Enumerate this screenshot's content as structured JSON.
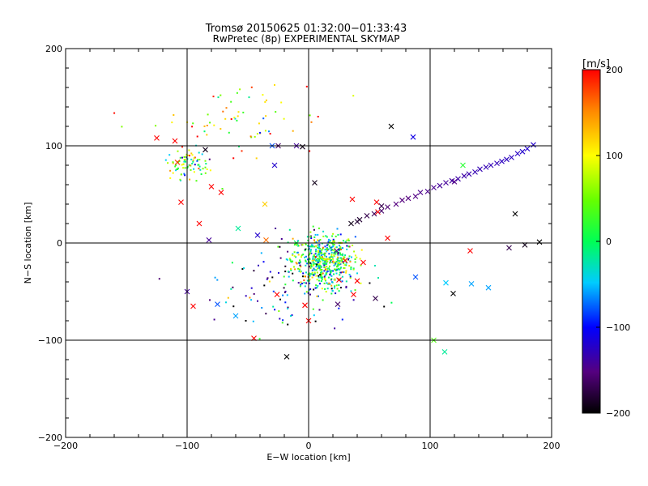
{
  "chart_data": {
    "type": "scatter",
    "title": "Tromsø 20150625 01:32:00−01:33:43",
    "subtitle": "RwPretec (8p) EXPERIMENTAL SKYMAP",
    "xlabel": "E−W location [km]",
    "ylabel": "N−S location [km]",
    "xlim": [
      -200,
      200
    ],
    "ylim": [
      -200,
      200
    ],
    "x_ticks": [
      -200,
      -100,
      0,
      100,
      200
    ],
    "y_ticks": [
      -200,
      -100,
      0,
      100,
      200
    ],
    "x_tick_labels": [
      "−200",
      "−100",
      "0",
      "100",
      "200"
    ],
    "y_tick_labels": [
      "−200",
      "−100",
      "0",
      "100",
      "200"
    ],
    "grid": true,
    "colorbar": {
      "label": "[m/s]",
      "range": [
        -200,
        200
      ],
      "ticks": [
        200,
        100,
        0,
        -100,
        -200
      ],
      "tick_labels": [
        "200",
        "100",
        "0",
        "−100",
        "−200"
      ],
      "colormap": "rainbow (black-purple-blue-cyan-green-yellow-red)"
    },
    "series": [
      {
        "marker": "x",
        "points": [
          [
            68,
            120
          ],
          [
            86,
            109
          ],
          [
            -125,
            108
          ],
          [
            -110,
            105
          ],
          [
            -108,
            83
          ],
          [
            -85,
            96
          ],
          [
            -30,
            100
          ],
          [
            -25,
            100
          ],
          [
            -28,
            80
          ],
          [
            -105,
            42
          ],
          [
            -90,
            20
          ],
          [
            -80,
            58
          ],
          [
            -72,
            52
          ],
          [
            -58,
            15
          ],
          [
            -82,
            3
          ],
          [
            -42,
            8
          ],
          [
            -36,
            40
          ],
          [
            -10,
            100
          ],
          [
            -5,
            99
          ],
          [
            5,
            62
          ],
          [
            -35,
            3
          ],
          [
            -100,
            -50
          ],
          [
            -10,
            0
          ],
          [
            40,
            22
          ],
          [
            57,
            32
          ],
          [
            60,
            38
          ],
          [
            56,
            42
          ],
          [
            65,
            5
          ],
          [
            36,
            45
          ],
          [
            23,
            -8
          ],
          [
            30,
            -18
          ],
          [
            45,
            -20
          ],
          [
            88,
            -35
          ],
          [
            133,
            -8
          ],
          [
            134,
            -42
          ],
          [
            148,
            -46
          ],
          [
            113,
            -41
          ],
          [
            119,
            -52
          ],
          [
            112,
            -112
          ],
          [
            103,
            -100
          ],
          [
            -45,
            -98
          ],
          [
            0,
            -80
          ],
          [
            -18,
            -117
          ],
          [
            55,
            -57
          ],
          [
            25,
            -38
          ],
          [
            40,
            -39
          ],
          [
            37,
            -53
          ],
          [
            24,
            -63
          ],
          [
            -3,
            -64
          ],
          [
            -26,
            -53
          ],
          [
            170,
            30
          ],
          [
            165,
            -5
          ],
          [
            178,
            -2
          ],
          [
            190,
            1
          ],
          [
            120,
            63
          ],
          [
            127,
            80
          ],
          [
            -75,
            -63
          ],
          [
            -95,
            -65
          ],
          [
            -60,
            -75
          ]
        ],
        "values": [
          -200,
          -110,
          200,
          200,
          180,
          -190,
          -80,
          -160,
          -120,
          200,
          200,
          200,
          200,
          -20,
          -140,
          -120,
          120,
          -140,
          -190,
          -190,
          160,
          -140,
          0,
          -180,
          200,
          -170,
          200,
          200,
          200,
          -150,
          200,
          200,
          -80,
          200,
          -60,
          -60,
          -50,
          -200,
          -20,
          40,
          200,
          200,
          -200,
          -170,
          200,
          200,
          200,
          -160,
          200,
          200,
          -200,
          -170,
          -190,
          -200,
          -150,
          20,
          -80,
          200,
          -60
        ],
        "trail": [
          [
            35,
            20
          ],
          [
            42,
            24
          ],
          [
            48,
            28
          ],
          [
            54,
            30
          ],
          [
            60,
            33
          ],
          [
            65,
            37
          ],
          [
            72,
            40
          ],
          [
            77,
            44
          ],
          [
            82,
            46
          ],
          [
            88,
            48
          ],
          [
            92,
            52
          ],
          [
            98,
            53
          ],
          [
            103,
            57
          ],
          [
            108,
            59
          ],
          [
            113,
            62
          ],
          [
            118,
            64
          ],
          [
            123,
            66
          ],
          [
            128,
            69
          ],
          [
            132,
            71
          ],
          [
            137,
            73
          ],
          [
            141,
            76
          ],
          [
            146,
            78
          ],
          [
            150,
            80
          ],
          [
            155,
            82
          ],
          [
            159,
            84
          ],
          [
            163,
            86
          ],
          [
            167,
            88
          ],
          [
            172,
            92
          ],
          [
            176,
            94
          ],
          [
            180,
            97
          ],
          [
            185,
            101
          ]
        ],
        "trail_values": [
          -190,
          -180,
          -170,
          -165,
          -160,
          -155,
          -150,
          -150,
          -150,
          -148,
          -145,
          -145,
          -143,
          -140,
          -140,
          -138,
          -135,
          -135,
          -133,
          -130,
          -130,
          -130,
          -128,
          -128,
          -125,
          -125,
          -125,
          -123,
          -120,
          -120,
          -120
        ]
      },
      {
        "marker": "dot",
        "clusters": [
          {
            "name": "",
            "center": [
              12,
              -18
            ],
            "spread": [
              13,
              14
            ],
            "count": 560,
            "mean_value": 10
          },
          {
            "name": "",
            "center": [
              -100,
              82
            ],
            "spread": [
              9,
              8
            ],
            "count": 80,
            "mean_value": 30
          },
          {
            "name": "",
            "center": [
              -55,
              125
            ],
            "spread": [
              35,
              22
            ],
            "count": 70,
            "mean_value": 90
          },
          {
            "name": "",
            "center": [
              -10,
              -40
            ],
            "spread": [
              30,
              20
            ],
            "count": 90,
            "mean_value": -120
          },
          {
            "name": "",
            "center": [
              -40,
              -70
            ],
            "spread": [
              25,
              12
            ],
            "count": 20,
            "mean_value": -40
          }
        ]
      }
    ]
  }
}
